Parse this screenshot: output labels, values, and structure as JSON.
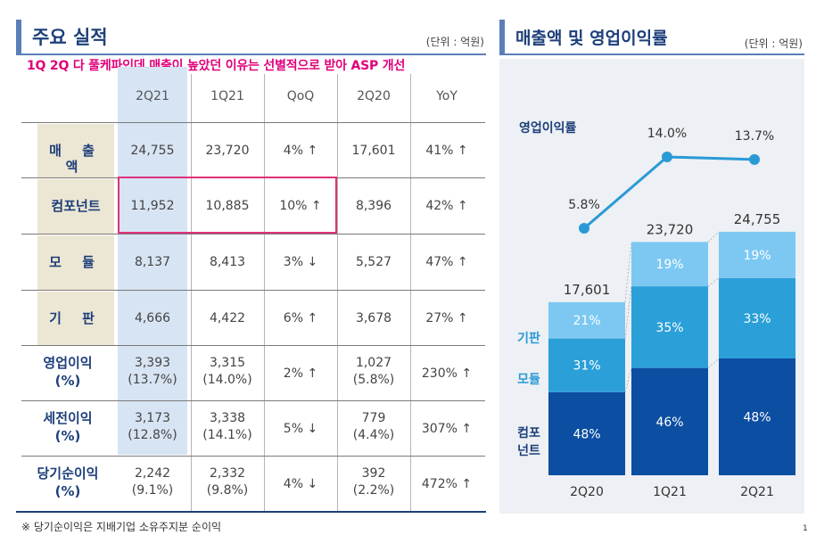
{
  "left": {
    "title": "주요 실적",
    "unit": "(단위 : 억원)",
    "note": "1Q 2Q 다 풀케파인데 매출이 높았던 이유는 선별적으로 받아 ASP 개선",
    "headers": [
      "2Q21",
      "1Q21",
      "QoQ",
      "2Q20",
      "YoY"
    ],
    "rows": [
      {
        "label": "매 출 액",
        "cells": [
          "24,755",
          "23,720",
          "4% ↑",
          "17,601",
          "41% ↑"
        ]
      },
      {
        "label": "컴포넌트",
        "cells": [
          "11,952",
          "10,885",
          "10% ↑",
          "8,396",
          "42% ↑"
        ]
      },
      {
        "label": "모  듈",
        "cells": [
          "8,137",
          "8,413",
          "3% ↓",
          "5,527",
          "47% ↑"
        ]
      },
      {
        "label": "기  판",
        "cells": [
          "4,666",
          "4,422",
          "6% ↑",
          "3,678",
          "27% ↑"
        ]
      },
      {
        "label": "영업이익",
        "label2": "(%)",
        "cells": [
          "3,393",
          "3,315",
          "2% ↑",
          "1,027",
          "230% ↑"
        ],
        "sub": [
          "(13.7%)",
          "(14.0%)",
          "",
          "(5.8%)",
          ""
        ]
      },
      {
        "label": "세전이익",
        "label2": "(%)",
        "cells": [
          "3,173",
          "3,338",
          "5% ↓",
          "779",
          "307% ↑"
        ],
        "sub": [
          "(12.8%)",
          "(14.1%)",
          "",
          "(4.4%)",
          ""
        ]
      },
      {
        "label": "당기순이익",
        "label2": "(%)",
        "cells": [
          "2,242",
          "2,332",
          "4% ↓",
          "392",
          "472% ↑"
        ],
        "sub": [
          "(9.1%)",
          "(9.8%)",
          "",
          "(2.2%)",
          ""
        ]
      }
    ],
    "footnote": "※ 당기순이익은 지배기업 소유주지분 순이익"
  },
  "right": {
    "title": "매출액 및 영업이익률",
    "unit": "(단위 : 억원)"
  },
  "page_number": "1",
  "chart_data": {
    "type": "bar",
    "title": "매출액 및 영업이익률",
    "categories": [
      "2Q20",
      "1Q21",
      "2Q21"
    ],
    "totals": [
      17601,
      23720,
      24755
    ],
    "total_labels": [
      "17,601",
      "23,720",
      "24,755"
    ],
    "series": [
      {
        "name": "컴포넌트",
        "label": "컴포\n넌트",
        "shares": [
          48,
          46,
          48
        ],
        "labels": [
          "48%",
          "46%",
          "48%"
        ],
        "color": "#0c4ea2"
      },
      {
        "name": "모듈",
        "label": "모듈",
        "shares": [
          31,
          35,
          33
        ],
        "labels": [
          "31%",
          "35%",
          "33%"
        ],
        "color": "#2b9fd8"
      },
      {
        "name": "기판",
        "label": "기판",
        "shares": [
          21,
          19,
          19
        ],
        "labels": [
          "21%",
          "19%",
          "19%"
        ],
        "color": "#7cc8f2"
      }
    ],
    "line": {
      "name": "영업이익률",
      "values": [
        5.8,
        14.0,
        13.7
      ],
      "labels": [
        "5.8%",
        "14.0%",
        "13.7%"
      ],
      "color": "#2a9ad6"
    },
    "ylim": [
      0,
      26000
    ]
  }
}
